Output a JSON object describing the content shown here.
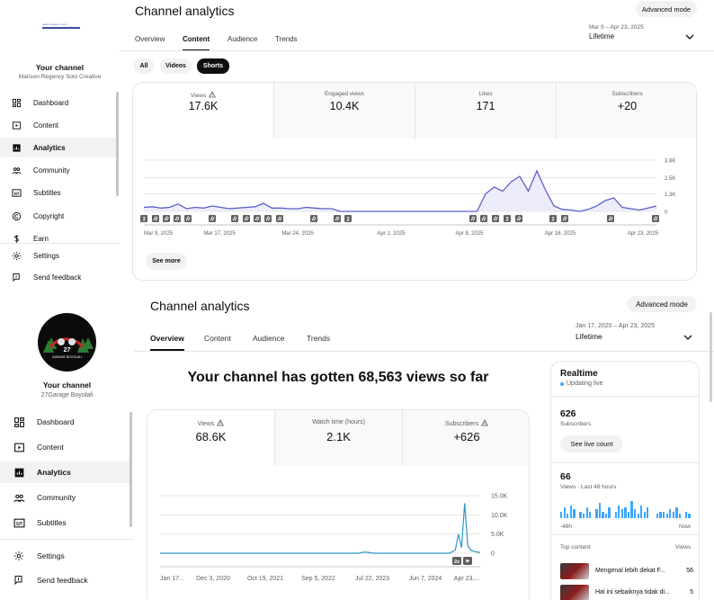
{
  "colors": {
    "accent": "#0f0f0f",
    "chart_line_1": "#5c5fcc",
    "chart_fill_1": "#ececfa",
    "chart_line_2": "#2d97c7",
    "realtime_bar": "#3ea6ff",
    "live_dot": "#3ea6ff"
  },
  "panel1": {
    "logo_text": "MARISON REGENCY GROUP",
    "channel_label": "Your channel",
    "channel_name": "Marison Regency Solo Creative",
    "nav": [
      {
        "label": "Dashboard",
        "icon": "dashboard-icon"
      },
      {
        "label": "Content",
        "icon": "content-icon"
      },
      {
        "label": "Analytics",
        "icon": "analytics-icon"
      },
      {
        "label": "Community",
        "icon": "community-icon"
      },
      {
        "label": "Subtitles",
        "icon": "subtitles-icon"
      },
      {
        "label": "Copyright",
        "icon": "copyright-icon"
      },
      {
        "label": "Earn",
        "icon": "earn-icon"
      }
    ],
    "settings_label": "Settings",
    "feedback_label": "Send feedback",
    "title": "Channel analytics",
    "advanced_mode": "Advanced mode",
    "tabs": [
      "Overview",
      "Content",
      "Audience",
      "Trends"
    ],
    "active_tab": "Content",
    "date_range": "Mar 9 – Apr 23, 2025",
    "period": "Lifetime",
    "filters": [
      "All",
      "Videos",
      "Shorts"
    ],
    "active_filter": "Shorts",
    "metrics": [
      {
        "label": "Views",
        "value": "17.6K",
        "warn": true
      },
      {
        "label": "Engaged views",
        "value": "10.4K",
        "warn": false
      },
      {
        "label": "Likes",
        "value": "171",
        "warn": false
      },
      {
        "label": "Subscribers",
        "value": "+20",
        "warn": false
      }
    ],
    "see_more": "See more",
    "marker_counts": [
      "3",
      "2",
      "2",
      "2"
    ]
  },
  "panel2": {
    "channel_label": "Your channel",
    "channel_name": "27Garage Boyolali",
    "avatar_text": "27",
    "avatar_subtext": "GARAGE BOYOLALI",
    "nav": [
      {
        "label": "Dashboard",
        "icon": "dashboard-icon"
      },
      {
        "label": "Content",
        "icon": "content-icon"
      },
      {
        "label": "Analytics",
        "icon": "analytics-icon"
      },
      {
        "label": "Community",
        "icon": "community-icon"
      },
      {
        "label": "Subtitles",
        "icon": "subtitles-icon"
      }
    ],
    "settings_label": "Settings",
    "feedback_label": "Send feedback",
    "title": "Channel analytics",
    "advanced_mode": "Advanced mode",
    "tabs": [
      "Overview",
      "Content",
      "Audience",
      "Trends"
    ],
    "active_tab": "Overview",
    "date_range": "Jan 17, 2020 – Apr 23, 2025",
    "period": "Lifetime",
    "headline": "Your channel has gotten 68,563 views so far",
    "metrics": [
      {
        "label": "Views",
        "value": "68.6K",
        "warn": true
      },
      {
        "label": "Watch time (hours)",
        "value": "2.1K",
        "warn": false
      },
      {
        "label": "Subscribers",
        "value": "+626",
        "warn": true
      }
    ],
    "realtime": {
      "title": "Realtime",
      "status": "Updating live",
      "subs_value": "626",
      "subs_label": "Subscribers",
      "see_live": "See live count",
      "views_value": "66",
      "views_label": "Views · Last 48 hours",
      "axis_left": "-48h",
      "axis_right": "Now",
      "top_content": "Top content",
      "views_col": "Views",
      "items": [
        {
          "title": "Mengenal lebih dekat F...",
          "views": "56"
        },
        {
          "title": "Hal ini sebaiknya tidak di...",
          "views": "5"
        }
      ],
      "bars": [
        0.3,
        0.5,
        0.2,
        0.6,
        0.4,
        0,
        0.3,
        0.2,
        0.5,
        0.3,
        0,
        0.4,
        0.7,
        0.3,
        0.2,
        0.5,
        0,
        0.3,
        0.6,
        0.4,
        0.5,
        0.3,
        0.8,
        0.4,
        0.2,
        0.6,
        0.3,
        0.5,
        0,
        0,
        0.2,
        0.3,
        0.3,
        0.2,
        0.4,
        0.3,
        0.5,
        0.2,
        0,
        0.3,
        0.2
      ]
    },
    "markers": [
      "2x"
    ]
  },
  "chart_data": [
    {
      "type": "area",
      "x_tick_labels": [
        "Mar 9, 2025",
        "Mar 17, 2025",
        "Mar 24, 2025",
        "Apr 1, 2025",
        "Apr 8, 2025",
        "Apr 16, 2025",
        "Apr 23, 2025"
      ],
      "y_tick_labels": [
        "3.8K",
        "2.5K",
        "1.3K",
        "0"
      ],
      "ylim": [
        0,
        3800
      ],
      "grid": true,
      "series": [
        {
          "values": [
            300,
            350,
            250,
            300,
            550,
            200,
            300,
            250,
            400,
            300,
            200,
            250,
            300,
            350,
            600,
            250,
            250,
            200,
            200,
            300,
            250,
            200,
            200,
            0,
            0,
            0,
            0,
            0,
            0,
            0,
            0,
            0,
            0,
            0,
            0,
            0,
            0,
            0,
            0,
            0,
            1300,
            1800,
            1500,
            2200,
            2600,
            1500,
            3000,
            1600,
            400,
            150,
            100,
            0,
            150,
            400,
            800,
            1000,
            300,
            200,
            100,
            250,
            400
          ]
        }
      ]
    },
    {
      "type": "line",
      "x_tick_labels": [
        "Jan 17...",
        "Dec 3, 2020",
        "Oct 19, 2021",
        "Sep 5, 2022",
        "Jul 22, 2023",
        "Jun 7, 2024",
        "Apr 23,..."
      ],
      "y_tick_labels": [
        "15.0K",
        "10.0K",
        "5.0K",
        "0"
      ],
      "ylim": [
        0,
        15000
      ],
      "grid": true,
      "series": [
        {
          "values": [
            0,
            0,
            0,
            0,
            0,
            0,
            0,
            0,
            0,
            0,
            0,
            0,
            0,
            0,
            0,
            0,
            0,
            0,
            0,
            0,
            0,
            0,
            0,
            0,
            0,
            0,
            0,
            0,
            0,
            0,
            0,
            0,
            0,
            0,
            0,
            0,
            0,
            0,
            0,
            0,
            0,
            0,
            0,
            0,
            0,
            0,
            0,
            0,
            0,
            0,
            0,
            0,
            0,
            0,
            0,
            0,
            0,
            0,
            0,
            0,
            0,
            0,
            0,
            0,
            0,
            200,
            300,
            200,
            100,
            0,
            0,
            0,
            0,
            0,
            0,
            0,
            0,
            0,
            0,
            0,
            0,
            0,
            0,
            0,
            0,
            0,
            0,
            0,
            0,
            0,
            0,
            0,
            0,
            0,
            400,
            800,
            5000,
            1500,
            13000,
            2000,
            800,
            500,
            300,
            200
          ]
        }
      ]
    }
  ]
}
